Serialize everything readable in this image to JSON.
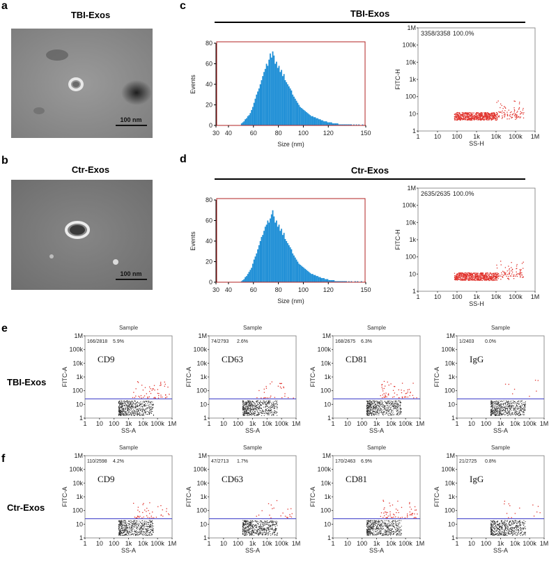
{
  "panels": {
    "a": {
      "letter": "a",
      "title": "TBI-Exos",
      "scale_bar": "100 nm"
    },
    "b": {
      "letter": "b",
      "title": "Ctr-Exos",
      "scale_bar": "100 nm"
    },
    "c": {
      "letter": "c",
      "title": "TBI-Exos"
    },
    "d": {
      "letter": "d",
      "title": "Ctr-Exos"
    },
    "e": {
      "letter": "e",
      "row_label": "TBI-Exos"
    },
    "f": {
      "letter": "f",
      "row_label": "Ctr-Exos"
    }
  },
  "colors": {
    "histogram": "#1f8fd6",
    "gate": "#b02020",
    "dots_pos": "#e0302a",
    "dots_neg": "#222222",
    "threshold": "#3b3bc8"
  },
  "chart_data": [
    {
      "id": "c-hist",
      "type": "bar",
      "xlabel": "Size (nm)",
      "ylabel": "Events",
      "xlim": [
        30,
        150
      ],
      "ylim": [
        0,
        80
      ],
      "xticks": [
        30,
        40,
        60,
        80,
        100,
        120,
        150
      ],
      "yticks": [
        0,
        20,
        40,
        60,
        80
      ],
      "bins_start": 50,
      "bins_width": 1,
      "values": [
        2,
        3,
        4,
        6,
        7,
        9,
        10,
        12,
        15,
        18,
        22,
        26,
        30,
        33,
        36,
        40,
        44,
        48,
        52,
        55,
        60,
        58,
        64,
        70,
        66,
        72,
        68,
        60,
        62,
        56,
        58,
        52,
        54,
        48,
        50,
        44,
        42,
        40,
        38,
        36,
        34,
        30,
        28,
        26,
        24,
        22,
        20,
        18,
        17,
        16,
        15,
        14,
        13,
        12,
        11,
        10,
        9,
        9,
        8,
        8,
        7,
        7,
        6,
        6,
        5,
        5,
        4,
        4,
        4,
        3,
        3,
        3,
        3,
        2,
        2,
        2,
        2,
        2,
        1,
        1,
        1,
        1,
        1,
        1,
        1,
        1,
        1,
        1,
        1,
        0,
        1,
        0,
        1,
        0,
        1,
        0,
        0,
        1,
        0,
        0
      ]
    },
    {
      "id": "c-scatter",
      "type": "scatter",
      "xlabel": "SS-H",
      "ylabel": "FITC-H",
      "scale": "log",
      "xticks": [
        "1",
        "10",
        "100",
        "1k",
        "10k",
        "100k",
        "1M"
      ],
      "yticks": [
        "1",
        "10",
        "100",
        "1k",
        "10k",
        "100k",
        "1M"
      ],
      "gate_label": "3358/3358",
      "gate_percent": "100.0%"
    },
    {
      "id": "d-hist",
      "type": "bar",
      "xlabel": "Size (nm)",
      "ylabel": "Events",
      "xlim": [
        30,
        150
      ],
      "ylim": [
        0,
        80
      ],
      "xticks": [
        30,
        40,
        60,
        80,
        100,
        120,
        150
      ],
      "yticks": [
        0,
        20,
        40,
        60,
        80
      ],
      "bins_start": 50,
      "bins_width": 1,
      "values": [
        1,
        2,
        3,
        5,
        6,
        8,
        10,
        12,
        14,
        18,
        22,
        25,
        28,
        32,
        36,
        40,
        44,
        46,
        50,
        54,
        56,
        60,
        58,
        62,
        66,
        70,
        64,
        58,
        60,
        54,
        56,
        50,
        52,
        46,
        48,
        42,
        40,
        38,
        36,
        34,
        32,
        28,
        26,
        24,
        22,
        20,
        18,
        17,
        16,
        15,
        14,
        13,
        12,
        11,
        10,
        9,
        8,
        8,
        7,
        7,
        6,
        6,
        5,
        5,
        4,
        4,
        4,
        3,
        3,
        3,
        2,
        2,
        2,
        2,
        2,
        1,
        1,
        1,
        1,
        1,
        1,
        1,
        1,
        1,
        1,
        0,
        1,
        0,
        1,
        0,
        0,
        1,
        0,
        1,
        0,
        0,
        1,
        0,
        0,
        0
      ]
    },
    {
      "id": "d-scatter",
      "type": "scatter",
      "xlabel": "SS-H",
      "ylabel": "FITC-H",
      "scale": "log",
      "xticks": [
        "1",
        "10",
        "100",
        "1k",
        "10k",
        "100k",
        "1M"
      ],
      "yticks": [
        "1",
        "10",
        "100",
        "1k",
        "10k",
        "100k",
        "1M"
      ],
      "gate_label": "2635/2635",
      "gate_percent": "100.0%"
    },
    {
      "id": "e-row",
      "type": "scatter",
      "xlabel": "SS-A",
      "ylabel": "FITC-A",
      "scale": "log",
      "xticks": [
        "1",
        "10",
        "100",
        "1k",
        "10k",
        "100k",
        "1M"
      ],
      "yticks": [
        "1",
        "10",
        "100",
        "1k",
        "10k",
        "100k",
        "1M"
      ],
      "plots": [
        {
          "title": "Sample",
          "gate_label": "166/2818",
          "gate_percent": "5.9%",
          "marker": "CD9"
        },
        {
          "title": "Sample",
          "gate_label": "74/2793",
          "gate_percent": "2.6%",
          "marker": "CD63"
        },
        {
          "title": "Sample",
          "gate_label": "168/2675",
          "gate_percent": "6.3%",
          "marker": "CD81"
        },
        {
          "title": "Sample",
          "gate_label": "1/2403",
          "gate_percent": "0.0%",
          "marker": "IgG"
        }
      ]
    },
    {
      "id": "f-row",
      "type": "scatter",
      "xlabel": "SS-A",
      "ylabel": "FITC-A",
      "scale": "log",
      "xticks": [
        "1",
        "10",
        "100",
        "1k",
        "10k",
        "100k",
        "1M"
      ],
      "yticks": [
        "1",
        "10",
        "100",
        "1k",
        "10k",
        "100k",
        "1M"
      ],
      "plots": [
        {
          "title": "Sample",
          "gate_label": "110/2598",
          "gate_percent": "4.2%",
          "marker": "CD9"
        },
        {
          "title": "Sample",
          "gate_label": "47/2713",
          "gate_percent": "1.7%",
          "marker": "CD63"
        },
        {
          "title": "Sample",
          "gate_label": "170/2463",
          "gate_percent": "6.9%",
          "marker": "CD81"
        },
        {
          "title": "Sample",
          "gate_label": "21/2725",
          "gate_percent": "0.8%",
          "marker": "IgG"
        }
      ]
    }
  ]
}
